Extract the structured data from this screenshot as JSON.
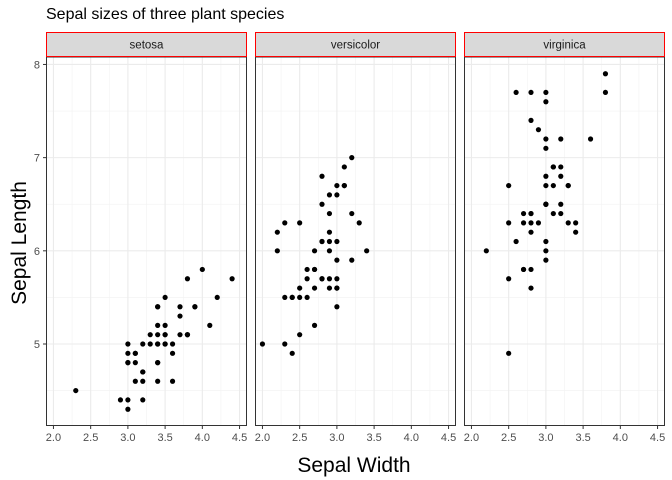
{
  "chart_data": {
    "type": "scatter",
    "title": "Sepal sizes of three plant species",
    "xlabel": "Sepal Width",
    "ylabel": "Sepal Length",
    "xlim": [
      1.9,
      4.6
    ],
    "ylim": [
      4.12,
      8.08
    ],
    "x_ticks": [
      2.0,
      2.5,
      3.0,
      3.5,
      4.0,
      4.5
    ],
    "x_tick_labels": [
      "2.0",
      "2.5",
      "3.0",
      "3.5",
      "4.0",
      "4.5"
    ],
    "y_ticks": [
      5,
      6,
      7,
      8
    ],
    "y_tick_labels": [
      "5",
      "6",
      "7",
      "8"
    ],
    "grid": true,
    "point_color": "#000000",
    "strip_fill": "#d9d9d9",
    "strip_border": "#ff0000",
    "facets": [
      {
        "name": "setosa",
        "points": [
          [
            3.5,
            5.1
          ],
          [
            3.0,
            4.9
          ],
          [
            3.2,
            4.7
          ],
          [
            3.1,
            4.6
          ],
          [
            3.6,
            5.0
          ],
          [
            3.9,
            5.4
          ],
          [
            3.4,
            4.6
          ],
          [
            3.4,
            5.0
          ],
          [
            2.9,
            4.4
          ],
          [
            3.1,
            4.9
          ],
          [
            3.7,
            5.4
          ],
          [
            3.4,
            4.8
          ],
          [
            3.0,
            4.8
          ],
          [
            3.0,
            4.3
          ],
          [
            4.0,
            5.8
          ],
          [
            4.4,
            5.7
          ],
          [
            3.9,
            5.4
          ],
          [
            3.5,
            5.1
          ],
          [
            3.8,
            5.7
          ],
          [
            3.8,
            5.1
          ],
          [
            3.4,
            5.4
          ],
          [
            3.7,
            5.1
          ],
          [
            3.6,
            4.6
          ],
          [
            3.3,
            5.1
          ],
          [
            3.4,
            4.8
          ],
          [
            3.0,
            5.0
          ],
          [
            3.4,
            5.0
          ],
          [
            3.5,
            5.2
          ],
          [
            3.4,
            5.2
          ],
          [
            3.2,
            4.7
          ],
          [
            3.1,
            4.8
          ],
          [
            3.4,
            5.4
          ],
          [
            4.1,
            5.2
          ],
          [
            4.2,
            5.5
          ],
          [
            3.1,
            4.9
          ],
          [
            3.2,
            5.0
          ],
          [
            3.5,
            5.5
          ],
          [
            3.6,
            4.9
          ],
          [
            3.0,
            4.4
          ],
          [
            3.4,
            5.1
          ],
          [
            3.5,
            5.0
          ],
          [
            2.3,
            4.5
          ],
          [
            3.2,
            4.4
          ],
          [
            3.5,
            5.0
          ],
          [
            3.8,
            5.1
          ],
          [
            3.0,
            4.8
          ],
          [
            3.8,
            5.1
          ],
          [
            3.2,
            4.6
          ],
          [
            3.7,
            5.3
          ],
          [
            3.3,
            5.0
          ]
        ]
      },
      {
        "name": "versicolor",
        "points": [
          [
            3.2,
            7.0
          ],
          [
            3.2,
            6.4
          ],
          [
            3.1,
            6.9
          ],
          [
            2.3,
            5.5
          ],
          [
            2.8,
            6.5
          ],
          [
            2.8,
            5.7
          ],
          [
            3.3,
            6.3
          ],
          [
            2.4,
            4.9
          ],
          [
            2.9,
            6.6
          ],
          [
            2.7,
            5.2
          ],
          [
            2.0,
            5.0
          ],
          [
            3.0,
            5.9
          ],
          [
            2.2,
            6.0
          ],
          [
            2.9,
            6.1
          ],
          [
            2.9,
            5.6
          ],
          [
            3.1,
            6.7
          ],
          [
            3.0,
            5.6
          ],
          [
            2.7,
            5.8
          ],
          [
            2.2,
            6.2
          ],
          [
            2.5,
            5.6
          ],
          [
            3.2,
            5.9
          ],
          [
            2.8,
            6.1
          ],
          [
            2.5,
            6.3
          ],
          [
            2.8,
            6.1
          ],
          [
            2.9,
            6.4
          ],
          [
            3.0,
            6.6
          ],
          [
            2.8,
            6.8
          ],
          [
            3.0,
            6.7
          ],
          [
            2.9,
            6.0
          ],
          [
            2.6,
            5.7
          ],
          [
            2.4,
            5.5
          ],
          [
            2.4,
            5.5
          ],
          [
            2.7,
            5.8
          ],
          [
            2.7,
            6.0
          ],
          [
            3.0,
            5.4
          ],
          [
            3.4,
            6.0
          ],
          [
            3.1,
            6.7
          ],
          [
            2.3,
            6.3
          ],
          [
            3.0,
            5.6
          ],
          [
            2.5,
            5.5
          ],
          [
            2.6,
            5.5
          ],
          [
            3.0,
            6.1
          ],
          [
            2.6,
            5.8
          ],
          [
            2.3,
            5.0
          ],
          [
            2.7,
            5.6
          ],
          [
            3.0,
            5.7
          ],
          [
            2.9,
            5.7
          ],
          [
            2.9,
            6.2
          ],
          [
            2.5,
            5.1
          ],
          [
            2.8,
            5.7
          ]
        ]
      },
      {
        "name": "virginica",
        "points": [
          [
            3.3,
            6.3
          ],
          [
            2.7,
            5.8
          ],
          [
            3.0,
            7.1
          ],
          [
            2.9,
            6.3
          ],
          [
            3.0,
            6.5
          ],
          [
            3.0,
            7.6
          ],
          [
            2.5,
            4.9
          ],
          [
            2.9,
            7.3
          ],
          [
            2.5,
            6.7
          ],
          [
            3.6,
            7.2
          ],
          [
            3.2,
            6.5
          ],
          [
            2.7,
            6.4
          ],
          [
            3.0,
            6.8
          ],
          [
            2.5,
            5.7
          ],
          [
            2.8,
            5.8
          ],
          [
            3.2,
            6.4
          ],
          [
            3.0,
            6.5
          ],
          [
            3.8,
            7.7
          ],
          [
            2.6,
            7.7
          ],
          [
            2.2,
            6.0
          ],
          [
            3.2,
            6.9
          ],
          [
            2.8,
            5.6
          ],
          [
            2.8,
            7.7
          ],
          [
            2.7,
            6.3
          ],
          [
            3.3,
            6.7
          ],
          [
            3.2,
            7.2
          ],
          [
            2.8,
            6.2
          ],
          [
            3.0,
            6.1
          ],
          [
            2.8,
            6.4
          ],
          [
            3.0,
            7.2
          ],
          [
            2.8,
            7.4
          ],
          [
            3.8,
            7.9
          ],
          [
            2.8,
            6.4
          ],
          [
            2.8,
            6.3
          ],
          [
            2.6,
            6.1
          ],
          [
            3.0,
            7.7
          ],
          [
            3.4,
            6.3
          ],
          [
            3.1,
            6.4
          ],
          [
            3.0,
            6.0
          ],
          [
            3.1,
            6.9
          ],
          [
            3.1,
            6.7
          ],
          [
            3.1,
            6.9
          ],
          [
            2.7,
            5.8
          ],
          [
            3.2,
            6.8
          ],
          [
            3.3,
            6.7
          ],
          [
            3.0,
            6.7
          ],
          [
            2.5,
            6.3
          ],
          [
            3.0,
            6.5
          ],
          [
            3.4,
            6.2
          ],
          [
            3.0,
            5.9
          ]
        ]
      }
    ]
  }
}
